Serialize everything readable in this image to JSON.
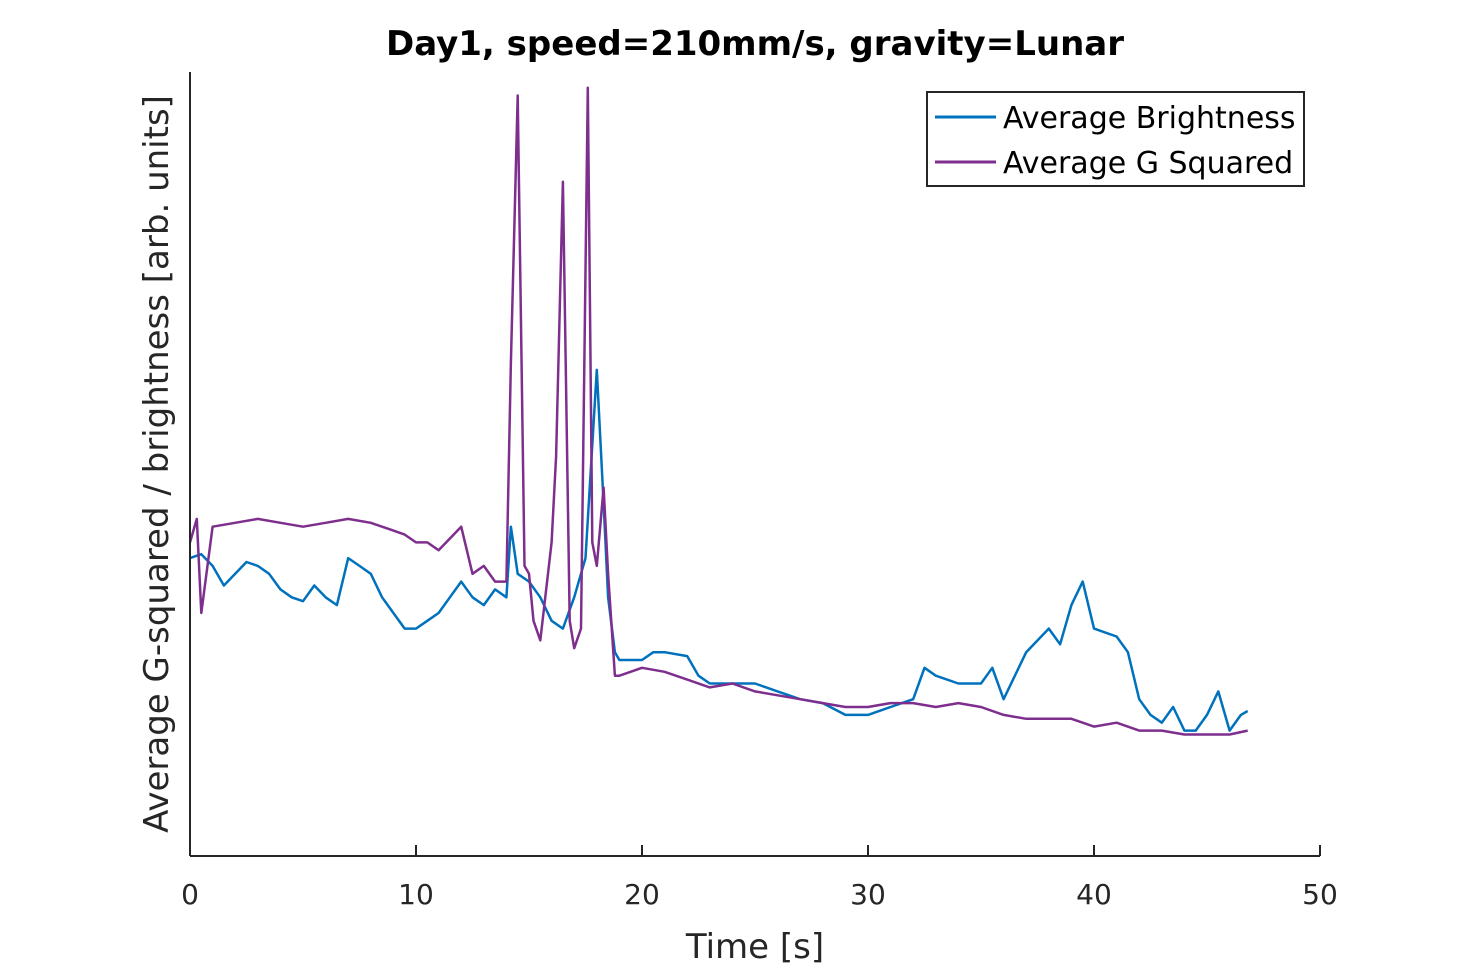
{
  "chart_data": {
    "type": "line",
    "title": "Day1, speed=210mm/s, gravity=Lunar",
    "xlabel": "Time [s]",
    "ylabel": "Average G-squared / brightness [arb. units]",
    "xlim": [
      0,
      50
    ],
    "ylim": [
      0,
      100
    ],
    "x_ticks": [
      0,
      10,
      20,
      30,
      40,
      50
    ],
    "x_tick_labels": [
      "0",
      "10",
      "20",
      "30",
      "40",
      "50"
    ],
    "y_ticks_shown": false,
    "grid": false,
    "legend_position": "top-right",
    "series": [
      {
        "name": "Average Brightness",
        "color": "#0072BD",
        "points": [
          [
            0,
            38
          ],
          [
            0.5,
            38.5
          ],
          [
            1,
            37
          ],
          [
            1.5,
            34.5
          ],
          [
            2,
            36
          ],
          [
            2.5,
            37.5
          ],
          [
            3,
            37
          ],
          [
            3.5,
            36
          ],
          [
            4,
            34
          ],
          [
            4.5,
            33
          ],
          [
            5,
            32.5
          ],
          [
            5.5,
            34.5
          ],
          [
            6,
            33
          ],
          [
            6.5,
            32
          ],
          [
            7,
            38
          ],
          [
            7.5,
            37
          ],
          [
            8,
            36
          ],
          [
            8.5,
            33
          ],
          [
            9,
            31
          ],
          [
            9.5,
            29
          ],
          [
            10,
            29
          ],
          [
            10.5,
            30
          ],
          [
            11,
            31
          ],
          [
            11.5,
            33
          ],
          [
            12,
            35
          ],
          [
            12.5,
            33
          ],
          [
            13,
            32
          ],
          [
            13.5,
            34
          ],
          [
            14,
            33
          ],
          [
            14.2,
            42
          ],
          [
            14.5,
            36
          ],
          [
            15,
            35
          ],
          [
            15.5,
            33
          ],
          [
            16,
            30
          ],
          [
            16.5,
            29
          ],
          [
            17,
            33
          ],
          [
            17.5,
            38
          ],
          [
            18,
            62
          ],
          [
            18.3,
            45
          ],
          [
            18.5,
            33
          ],
          [
            18.8,
            26
          ],
          [
            19,
            25
          ],
          [
            20,
            25
          ],
          [
            20.5,
            26
          ],
          [
            21,
            26
          ],
          [
            22,
            25.5
          ],
          [
            22.5,
            23
          ],
          [
            23,
            22
          ],
          [
            24,
            22
          ],
          [
            25,
            22
          ],
          [
            26,
            21
          ],
          [
            27,
            20
          ],
          [
            28,
            19.5
          ],
          [
            29,
            18
          ],
          [
            30,
            18
          ],
          [
            31,
            19
          ],
          [
            32,
            20
          ],
          [
            32.5,
            24
          ],
          [
            33,
            23
          ],
          [
            34,
            22
          ],
          [
            35,
            22
          ],
          [
            35.5,
            24
          ],
          [
            36,
            20
          ],
          [
            37,
            26
          ],
          [
            38,
            29
          ],
          [
            38.5,
            27
          ],
          [
            39,
            32
          ],
          [
            39.5,
            35
          ],
          [
            40,
            29
          ],
          [
            41,
            28
          ],
          [
            41.5,
            26
          ],
          [
            42,
            20
          ],
          [
            42.5,
            18
          ],
          [
            43,
            17
          ],
          [
            43.5,
            19
          ],
          [
            44,
            16
          ],
          [
            44.5,
            16
          ],
          [
            45,
            18
          ],
          [
            45.5,
            21
          ],
          [
            46,
            16
          ],
          [
            46.5,
            18
          ],
          [
            46.8,
            18.5
          ]
        ]
      },
      {
        "name": "Average G Squared",
        "color": "#7E2F8E",
        "points": [
          [
            0,
            40
          ],
          [
            0.3,
            43
          ],
          [
            0.5,
            31
          ],
          [
            1,
            42
          ],
          [
            2,
            42.5
          ],
          [
            3,
            43
          ],
          [
            4,
            42.5
          ],
          [
            5,
            42
          ],
          [
            6,
            42.5
          ],
          [
            7,
            43
          ],
          [
            8,
            42.5
          ],
          [
            9,
            41.5
          ],
          [
            9.5,
            41
          ],
          [
            10,
            40
          ],
          [
            10.5,
            40
          ],
          [
            11,
            39
          ],
          [
            12,
            42
          ],
          [
            12.5,
            36
          ],
          [
            13,
            37
          ],
          [
            13.5,
            35
          ],
          [
            14,
            35
          ],
          [
            14.2,
            63
          ],
          [
            14.5,
            97
          ],
          [
            14.8,
            37
          ],
          [
            15,
            36
          ],
          [
            15.2,
            30
          ],
          [
            15.5,
            27.5
          ],
          [
            16,
            40
          ],
          [
            16.2,
            51
          ],
          [
            16.5,
            86
          ],
          [
            16.8,
            30
          ],
          [
            17,
            26.5
          ],
          [
            17.3,
            29
          ],
          [
            17.6,
            98
          ],
          [
            17.8,
            40
          ],
          [
            18,
            37
          ],
          [
            18.3,
            47
          ],
          [
            18.5,
            36
          ],
          [
            18.8,
            23
          ],
          [
            19,
            23
          ],
          [
            20,
            24
          ],
          [
            21,
            23.5
          ],
          [
            22,
            22.5
          ],
          [
            23,
            21.5
          ],
          [
            24,
            22
          ],
          [
            25,
            21
          ],
          [
            26,
            20.5
          ],
          [
            27,
            20
          ],
          [
            28,
            19.5
          ],
          [
            29,
            19
          ],
          [
            30,
            19
          ],
          [
            31,
            19.5
          ],
          [
            32,
            19.5
          ],
          [
            33,
            19
          ],
          [
            34,
            19.5
          ],
          [
            35,
            19
          ],
          [
            36,
            18
          ],
          [
            37,
            17.5
          ],
          [
            38,
            17.5
          ],
          [
            39,
            17.5
          ],
          [
            40,
            16.5
          ],
          [
            41,
            17
          ],
          [
            42,
            16
          ],
          [
            43,
            16
          ],
          [
            44,
            15.5
          ],
          [
            45,
            15.5
          ],
          [
            46,
            15.5
          ],
          [
            46.8,
            16
          ]
        ]
      }
    ]
  }
}
